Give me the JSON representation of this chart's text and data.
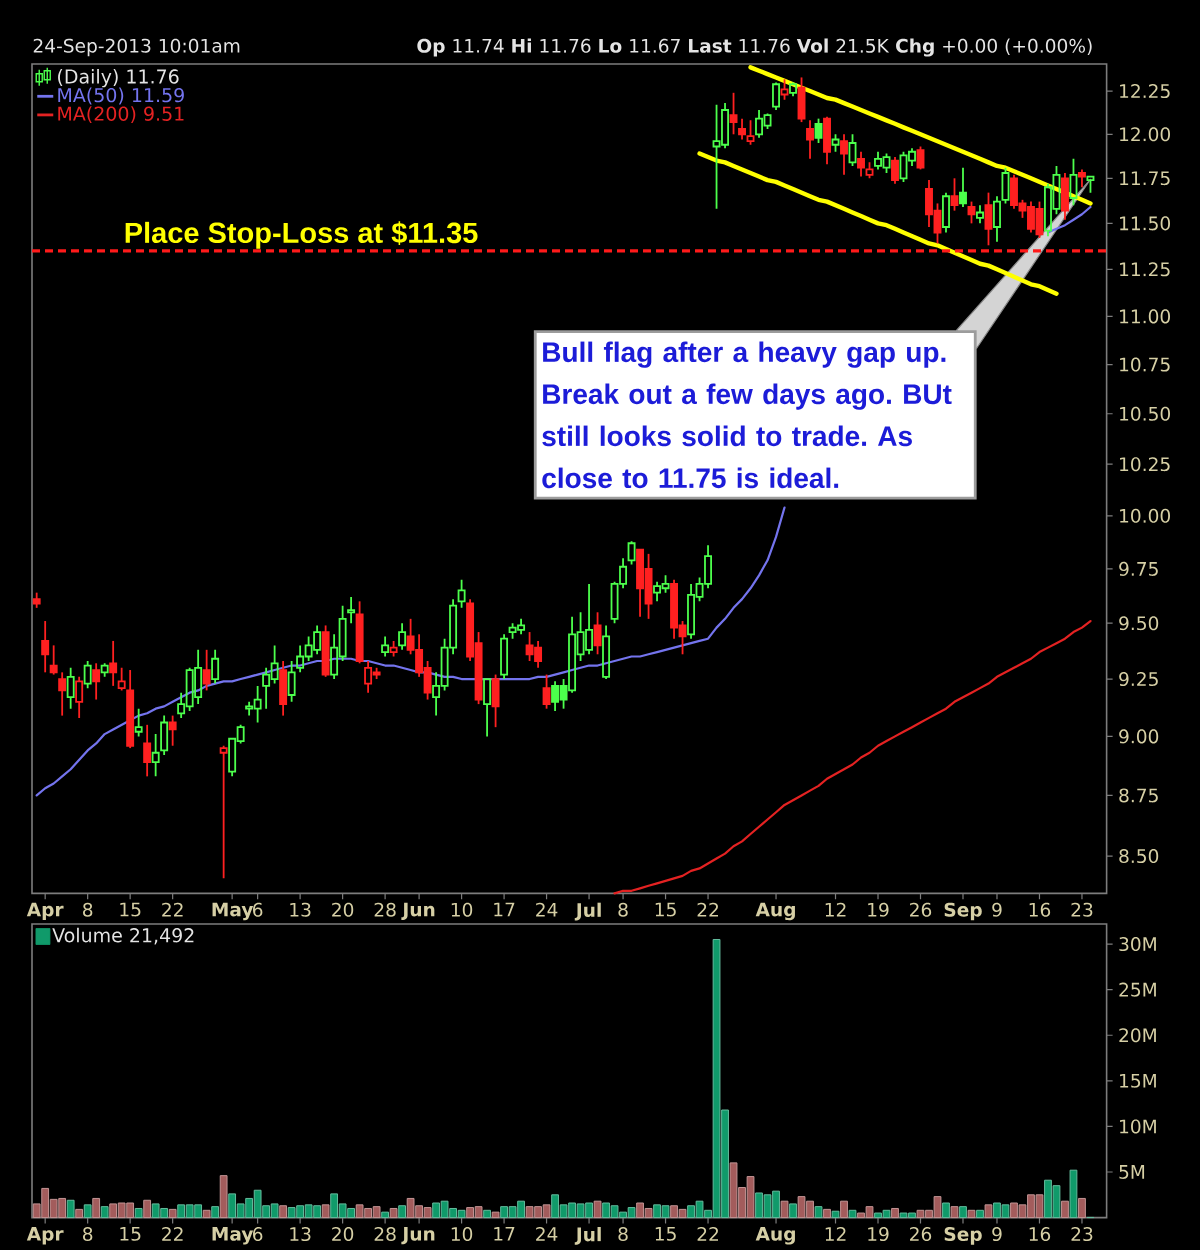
{
  "chart_data": [
    {
      "type": "candlestick",
      "subtitle": "24-Sep-2013 10:01am",
      "annotations": [
        "**Op** 11.74 **Hi** 11.76 **Lo** 11.67 **Last** 11.76 **Vol** 21.5K **Chg** +0.00 (+0.00%)",
        "Bull flag after a heavy gap up. Break out a few days ago. BUt still looks solid to trade. As close to 11.75 is ideal."
      ],
      "categories": [
        null,
        "**Apr**",
        null,
        null,
        null,
        null,
        "8",
        null,
        null,
        null,
        null,
        "15",
        null,
        null,
        null,
        null,
        "22",
        null,
        null,
        null,
        null,
        null,
        null,
        "**May**",
        null,
        null,
        "6",
        null,
        null,
        null,
        null,
        "13",
        null,
        null,
        null,
        null,
        "20",
        null,
        null,
        null,
        null,
        "28",
        null,
        null,
        null,
        "**Jun**",
        null,
        null,
        null,
        null,
        "10",
        null,
        null,
        null,
        null,
        "17",
        null,
        null,
        null,
        null,
        "24",
        null,
        null,
        null,
        null,
        "**Jul**",
        null,
        null,
        null,
        "8",
        null,
        null,
        null,
        null,
        "15",
        null,
        null,
        null,
        null,
        "22",
        null,
        null,
        null,
        null,
        null,
        null,
        null,
        "**Aug**",
        null,
        null,
        null,
        null,
        null,
        null,
        "12",
        null,
        null,
        null,
        null,
        "19",
        null,
        null,
        null,
        null,
        "26",
        null,
        null,
        null,
        null,
        "**Sep**",
        null,
        null,
        null,
        "9",
        null,
        null,
        null,
        null,
        "16",
        null,
        null,
        null,
        null,
        "23",
        null
      ],
      "series": [
        {
          "type": "candlestick",
          "name": "(Daily) 11.76",
          "ohlc": [
            [
              9.61,
              9.64,
              9.57,
              9.59
            ],
            [
              9.42,
              9.51,
              9.28,
              9.36
            ],
            [
              9.31,
              9.4,
              9.27,
              9.28
            ],
            [
              9.25,
              9.28,
              9.09,
              9.2
            ],
            [
              9.17,
              9.3,
              9.12,
              9.26
            ],
            [
              9.15,
              9.26,
              9.08,
              9.24
            ],
            [
              9.23,
              9.33,
              9.21,
              9.31
            ],
            [
              9.29,
              9.32,
              9.16,
              9.24
            ],
            [
              9.28,
              9.32,
              9.26,
              9.31
            ],
            [
              9.32,
              9.42,
              9.22,
              9.28
            ],
            [
              9.21,
              9.3,
              9.2,
              9.24
            ],
            [
              9.2,
              9.29,
              8.95,
              8.96
            ],
            [
              9.02,
              9.12,
              9.0,
              9.04
            ],
            [
              8.97,
              9.05,
              8.83,
              8.89
            ],
            [
              8.89,
              9.01,
              8.83,
              8.93
            ],
            [
              8.94,
              9.09,
              8.92,
              9.06
            ],
            [
              9.06,
              9.09,
              8.96,
              9.03
            ],
            [
              9.1,
              9.19,
              9.08,
              9.14
            ],
            [
              9.13,
              9.3,
              9.11,
              9.29
            ],
            [
              9.17,
              9.38,
              9.14,
              9.3
            ],
            [
              9.29,
              9.38,
              9.2,
              9.23
            ],
            [
              9.25,
              9.38,
              9.23,
              9.34
            ],
            [
              8.93,
              8.96,
              8.41,
              8.95
            ],
            [
              8.85,
              8.99,
              8.83,
              8.99
            ],
            [
              8.98,
              9.05,
              8.97,
              9.04
            ],
            [
              9.12,
              9.15,
              9.09,
              9.13
            ],
            [
              9.12,
              9.22,
              9.06,
              9.16
            ],
            [
              9.22,
              9.3,
              9.12,
              9.27
            ],
            [
              9.25,
              9.4,
              9.23,
              9.32
            ],
            [
              9.29,
              9.33,
              9.09,
              9.14
            ],
            [
              9.18,
              9.33,
              9.15,
              9.28
            ],
            [
              9.3,
              9.4,
              9.28,
              9.35
            ],
            [
              9.35,
              9.44,
              9.33,
              9.4
            ],
            [
              9.38,
              9.49,
              9.36,
              9.46
            ],
            [
              9.46,
              9.49,
              9.26,
              9.27
            ],
            [
              9.27,
              9.45,
              9.25,
              9.39
            ],
            [
              9.35,
              9.58,
              9.33,
              9.52
            ],
            [
              9.55,
              9.62,
              9.5,
              9.56
            ],
            [
              9.54,
              9.6,
              9.32,
              9.33
            ],
            [
              9.23,
              9.33,
              9.19,
              9.3
            ],
            [
              9.28,
              9.3,
              9.25,
              9.27
            ],
            [
              9.37,
              9.44,
              9.35,
              9.4
            ],
            [
              9.37,
              9.42,
              9.35,
              9.39
            ],
            [
              9.4,
              9.5,
              9.38,
              9.46
            ],
            [
              9.44,
              9.52,
              9.36,
              9.38
            ],
            [
              9.38,
              9.45,
              9.26,
              9.28
            ],
            [
              9.3,
              9.33,
              9.16,
              9.19
            ],
            [
              9.17,
              9.28,
              9.09,
              9.22
            ],
            [
              9.22,
              9.43,
              9.2,
              9.39
            ],
            [
              9.39,
              9.61,
              9.36,
              9.58
            ],
            [
              9.6,
              9.7,
              9.57,
              9.65
            ],
            [
              9.59,
              9.61,
              9.33,
              9.35
            ],
            [
              9.41,
              9.46,
              9.14,
              9.16
            ],
            [
              9.14,
              9.25,
              9.0,
              9.25
            ],
            [
              9.25,
              9.27,
              9.04,
              9.13
            ],
            [
              9.27,
              9.45,
              9.25,
              9.43
            ],
            [
              9.46,
              9.5,
              9.43,
              9.48
            ],
            [
              9.47,
              9.52,
              9.45,
              9.49
            ],
            [
              9.4,
              9.46,
              9.33,
              9.36
            ],
            [
              9.39,
              9.42,
              9.3,
              9.33
            ],
            [
              9.21,
              9.27,
              9.12,
              9.14
            ],
            [
              9.22,
              9.24,
              9.11,
              9.15
            ],
            [
              9.22,
              9.25,
              9.12,
              9.16
            ],
            [
              9.2,
              9.53,
              9.19,
              9.45
            ],
            [
              9.36,
              9.55,
              9.33,
              9.46
            ],
            [
              9.38,
              9.68,
              9.36,
              9.47
            ],
            [
              9.49,
              9.55,
              9.36,
              9.4
            ],
            [
              9.26,
              9.49,
              9.25,
              9.44
            ],
            [
              9.52,
              9.69,
              9.5,
              9.68
            ],
            [
              9.68,
              9.8,
              9.66,
              9.76
            ],
            [
              9.79,
              9.88,
              9.77,
              9.87
            ],
            [
              9.84,
              9.84,
              9.53,
              9.66
            ],
            [
              9.75,
              9.82,
              9.52,
              9.59
            ],
            [
              9.64,
              9.69,
              9.6,
              9.67
            ],
            [
              9.66,
              9.72,
              9.64,
              9.68
            ],
            [
              9.68,
              9.7,
              9.43,
              9.48
            ],
            [
              9.49,
              9.51,
              9.36,
              9.44
            ],
            [
              9.45,
              9.68,
              9.43,
              9.63
            ],
            [
              9.62,
              9.71,
              9.6,
              9.68
            ],
            [
              9.68,
              9.86,
              9.66,
              9.81
            ],
            [
              11.93,
              12.17,
              11.58,
              11.96
            ],
            [
              11.94,
              12.18,
              11.92,
              12.14
            ],
            [
              12.11,
              12.24,
              12.0,
              12.07
            ],
            [
              12.03,
              12.09,
              11.97,
              12.0
            ],
            [
              11.96,
              12.08,
              11.94,
              11.99
            ],
            [
              12.0,
              12.14,
              11.98,
              12.09
            ],
            [
              12.05,
              12.12,
              12.03,
              12.11
            ],
            [
              12.16,
              12.3,
              12.14,
              12.29
            ],
            [
              12.23,
              12.32,
              12.2,
              12.26
            ],
            [
              12.24,
              12.3,
              12.22,
              12.29
            ],
            [
              12.27,
              12.33,
              12.07,
              12.09
            ],
            [
              12.03,
              12.08,
              11.86,
              11.97
            ],
            [
              12.06,
              12.09,
              11.95,
              11.98
            ],
            [
              12.09,
              12.1,
              11.83,
              11.9
            ],
            [
              11.94,
              12.0,
              11.9,
              11.97
            ],
            [
              11.96,
              12.0,
              11.77,
              11.89
            ],
            [
              11.84,
              12.0,
              11.82,
              11.95
            ],
            [
              11.86,
              11.9,
              11.76,
              11.81
            ],
            [
              11.77,
              11.84,
              11.75,
              11.8
            ],
            [
              11.82,
              11.9,
              11.8,
              11.86
            ],
            [
              11.81,
              11.89,
              11.78,
              11.87
            ],
            [
              11.85,
              11.87,
              11.72,
              11.74
            ],
            [
              11.75,
              11.9,
              11.73,
              11.88
            ],
            [
              11.85,
              11.92,
              11.82,
              11.9
            ],
            [
              11.91,
              11.93,
              11.8,
              11.81
            ],
            [
              11.69,
              11.74,
              11.48,
              11.55
            ],
            [
              11.57,
              11.61,
              11.39,
              11.45
            ],
            [
              11.48,
              11.67,
              11.45,
              11.65
            ],
            [
              11.65,
              11.75,
              11.57,
              11.6
            ],
            [
              11.67,
              11.81,
              11.59,
              11.61
            ],
            [
              11.59,
              11.62,
              11.5,
              11.55
            ],
            [
              11.53,
              11.6,
              11.5,
              11.56
            ],
            [
              11.6,
              11.67,
              11.38,
              11.47
            ],
            [
              11.48,
              11.65,
              11.4,
              11.62
            ],
            [
              11.63,
              11.81,
              11.61,
              11.78
            ],
            [
              11.75,
              11.77,
              11.58,
              11.6
            ],
            [
              11.61,
              11.63,
              11.53,
              11.57
            ],
            [
              11.59,
              11.62,
              11.45,
              11.47
            ],
            [
              11.58,
              11.62,
              11.42,
              11.44
            ],
            [
              11.46,
              11.72,
              11.43,
              11.7
            ],
            [
              11.58,
              11.82,
              11.55,
              11.77
            ],
            [
              11.75,
              11.78,
              11.52,
              11.57
            ],
            [
              11.64,
              11.86,
              11.6,
              11.77
            ],
            [
              11.78,
              11.8,
              11.7,
              11.76
            ],
            [
              11.74,
              11.76,
              11.67,
              11.76
            ]
          ],
          "colors": [
            "#ff2020",
            "#ff2020",
            "#ff2020",
            "#ff2020",
            "#4cff4c",
            "#ff2020",
            "#4cff4c",
            "#ff2020",
            "#4cff4c",
            "#ff2020",
            "#ff2020",
            "#ff2020",
            "#4cff4c",
            "#ff2020",
            "#4cff4c",
            "#4cff4c",
            "#ff2020",
            "#4cff4c",
            "#4cff4c",
            "#4cff4c",
            "#ff2020",
            "#4cff4c",
            "#ff2020",
            "#4cff4c",
            "#4cff4c",
            "#4cff4c",
            "#4cff4c",
            "#4cff4c",
            "#4cff4c",
            "#ff2020",
            "#4cff4c",
            "#4cff4c",
            "#4cff4c",
            "#4cff4c",
            "#ff2020",
            "#4cff4c",
            "#4cff4c",
            "#4cff4c",
            "#ff2020",
            "#ff2020",
            "#ff2020",
            "#4cff4c",
            "#ff2020",
            "#4cff4c",
            "#ff2020",
            "#ff2020",
            "#ff2020",
            "#4cff4c",
            "#4cff4c",
            "#4cff4c",
            "#4cff4c",
            "#ff2020",
            "#ff2020",
            "#4cff4c",
            "#ff2020",
            "#4cff4c",
            "#4cff4c",
            "#4cff4c",
            "#ff2020",
            "#ff2020",
            "#ff2020",
            "#4cff4c",
            "#4cff4c",
            "#4cff4c",
            "#4cff4c",
            "#4cff4c",
            "#ff2020",
            "#4cff4c",
            "#4cff4c",
            "#4cff4c",
            "#4cff4c",
            "#ff2020",
            "#ff2020",
            "#4cff4c",
            "#4cff4c",
            "#ff2020",
            "#ff2020",
            "#4cff4c",
            "#4cff4c",
            "#4cff4c",
            "#4cff4c",
            "#4cff4c",
            "#ff2020",
            "#ff2020",
            "#ff2020",
            "#4cff4c",
            "#4cff4c",
            "#4cff4c",
            "#ff2020",
            "#4cff4c",
            "#ff2020",
            "#ff2020",
            "#4cff4c",
            "#ff2020",
            "#4cff4c",
            "#ff2020",
            "#4cff4c",
            "#ff2020",
            "#ff2020",
            "#4cff4c",
            "#4cff4c",
            "#ff2020",
            "#4cff4c",
            "#4cff4c",
            "#ff2020",
            "#ff2020",
            "#ff2020",
            "#4cff4c",
            "#ff2020",
            "#4cff4c",
            "#ff2020",
            "#4cff4c",
            "#ff2020",
            "#4cff4c",
            "#4cff4c",
            "#ff2020",
            "#ff2020",
            "#ff2020",
            "#ff2020",
            "#4cff4c",
            "#4cff4c",
            "#ff2020",
            "#4cff4c",
            "#ff2020",
            "#4cff4c"
          ]
        },
        {
          "type": "line",
          "name": "MA(50) 11.59",
          "color": "#7474ee",
          "values": [
            8.75,
            8.78,
            8.8,
            8.83,
            8.86,
            8.9,
            8.94,
            8.97,
            9.01,
            9.03,
            9.05,
            9.07,
            9.09,
            9.1,
            9.12,
            9.13,
            9.15,
            9.17,
            9.19,
            9.2,
            9.22,
            9.23,
            9.24,
            9.24,
            9.25,
            9.26,
            9.27,
            9.28,
            9.29,
            9.3,
            9.31,
            9.31,
            9.32,
            9.33,
            9.33,
            9.34,
            9.34,
            9.34,
            9.33,
            9.33,
            9.32,
            9.31,
            9.31,
            9.3,
            9.29,
            9.28,
            9.28,
            9.27,
            9.26,
            9.26,
            9.25,
            9.25,
            9.25,
            9.25,
            9.25,
            9.25,
            9.25,
            9.25,
            9.25,
            9.26,
            9.26,
            9.27,
            9.28,
            9.29,
            9.3,
            9.31,
            9.31,
            9.32,
            9.33,
            9.34,
            9.35,
            9.35,
            9.36,
            9.37,
            9.38,
            9.39,
            9.4,
            9.41,
            9.42,
            9.43,
            9.48,
            9.52,
            9.57,
            9.61,
            9.66,
            9.72,
            9.79,
            9.9,
            10.04,
            null,
            null,
            null,
            null,
            null,
            null,
            null,
            null,
            null,
            null,
            null,
            null,
            null,
            null,
            null,
            null,
            null,
            null,
            null,
            null,
            null,
            null,
            null,
            null,
            null,
            null,
            null,
            null,
            null,
            null,
            11.45,
            11.47,
            11.49,
            11.52,
            11.55,
            11.59
          ]
        },
        {
          "type": "line",
          "name": "MA(200) 9.51",
          "color": "#e42222",
          "values": [
            null,
            null,
            null,
            null,
            null,
            null,
            null,
            null,
            null,
            null,
            null,
            null,
            null,
            null,
            null,
            null,
            null,
            null,
            null,
            null,
            null,
            null,
            null,
            null,
            null,
            null,
            null,
            null,
            null,
            null,
            null,
            null,
            null,
            null,
            null,
            null,
            null,
            null,
            null,
            null,
            null,
            null,
            null,
            null,
            null,
            null,
            null,
            null,
            null,
            null,
            null,
            null,
            null,
            null,
            null,
            null,
            null,
            null,
            null,
            null,
            null,
            null,
            null,
            null,
            null,
            null,
            null,
            null,
            8.35,
            8.36,
            8.36,
            8.37,
            8.38,
            8.39,
            8.4,
            8.41,
            8.42,
            8.44,
            8.45,
            8.47,
            8.49,
            8.51,
            8.54,
            8.56,
            8.59,
            8.62,
            8.65,
            8.68,
            8.71,
            8.73,
            8.75,
            8.77,
            8.79,
            8.82,
            8.84,
            8.86,
            8.88,
            8.91,
            8.93,
            8.96,
            8.98,
            9.0,
            9.02,
            9.04,
            9.06,
            9.08,
            9.1,
            9.12,
            9.15,
            9.17,
            9.19,
            9.21,
            9.23,
            9.26,
            9.28,
            9.3,
            9.32,
            9.34,
            9.37,
            9.39,
            9.41,
            9.43,
            9.46,
            9.48,
            9.51
          ]
        },
        {
          "type": "line",
          "color": "#ffff00",
          "values": [
            null,
            null,
            null,
            null,
            null,
            null,
            null,
            null,
            null,
            null,
            null,
            null,
            null,
            null,
            null,
            null,
            null,
            null,
            null,
            null,
            null,
            null,
            null,
            null,
            null,
            null,
            null,
            null,
            null,
            null,
            null,
            null,
            null,
            null,
            null,
            null,
            null,
            null,
            null,
            null,
            null,
            null,
            null,
            null,
            null,
            null,
            null,
            null,
            null,
            null,
            null,
            null,
            null,
            null,
            null,
            null,
            null,
            null,
            null,
            null,
            null,
            null,
            null,
            null,
            null,
            null,
            null,
            null,
            null,
            null,
            null,
            null,
            null,
            null,
            null,
            null,
            null,
            null,
            null,
            null,
            null,
            null,
            null,
            null,
            12.39,
            12.37,
            12.35,
            12.33,
            12.31,
            12.29,
            12.27,
            12.25,
            12.23,
            12.21,
            12.2,
            12.18,
            12.16,
            12.14,
            12.12,
            12.1,
            12.08,
            12.06,
            12.04,
            12.02,
            12.0,
            11.98,
            11.96,
            11.94,
            11.92,
            11.9,
            11.88,
            11.86,
            11.84,
            11.82,
            11.81,
            11.79,
            11.77,
            11.75,
            11.73,
            11.71,
            11.69,
            11.67,
            11.65,
            11.63,
            11.61
          ]
        },
        {
          "type": "line",
          "color": "#ffff00",
          "values": [
            null,
            null,
            null,
            null,
            null,
            null,
            null,
            null,
            null,
            null,
            null,
            null,
            null,
            null,
            null,
            null,
            null,
            null,
            null,
            null,
            null,
            null,
            null,
            null,
            null,
            null,
            null,
            null,
            null,
            null,
            null,
            null,
            null,
            null,
            null,
            null,
            null,
            null,
            null,
            null,
            null,
            null,
            null,
            null,
            null,
            null,
            null,
            null,
            null,
            null,
            null,
            null,
            null,
            null,
            null,
            null,
            null,
            null,
            null,
            null,
            null,
            null,
            null,
            null,
            null,
            null,
            null,
            null,
            null,
            null,
            null,
            null,
            null,
            null,
            null,
            null,
            null,
            null,
            11.89,
            11.87,
            11.85,
            11.84,
            11.82,
            11.8,
            11.78,
            11.76,
            11.74,
            11.73,
            11.71,
            11.69,
            11.67,
            11.65,
            11.63,
            11.62,
            11.6,
            11.58,
            11.56,
            11.54,
            11.52,
            11.5,
            11.49,
            11.47,
            11.45,
            11.43,
            11.41,
            11.39,
            11.38,
            11.36,
            11.34,
            11.32,
            11.3,
            11.28,
            11.27,
            11.25,
            11.23,
            11.21,
            11.19,
            11.17,
            11.16,
            11.14,
            11.12,
            null,
            null,
            null,
            null
          ]
        }
      ],
      "ref_lines": [
        {
          "axis": "y",
          "value": 11.35,
          "label": "Place Stop-Loss at $11.35",
          "color": "#ff1a1a",
          "line_style": "dashed"
        }
      ],
      "log": true,
      "ylim": [
        8.35,
        12.41
      ],
      "yticks": [
        {
          "value": 8.5,
          "label": "8.50"
        },
        8.75,
        {
          "value": 9,
          "label": "9.00"
        },
        9.25,
        {
          "value": 9.5,
          "label": "9.50"
        },
        9.75,
        {
          "value": 10,
          "label": "10.00"
        },
        10.25,
        {
          "value": 10.5,
          "label": "10.50"
        },
        10.75,
        {
          "value": 11,
          "label": "11.00"
        },
        11.25,
        {
          "value": 11.5,
          "label": "11.50"
        },
        11.75,
        {
          "value": 12,
          "label": "12.00"
        },
        12.25
      ],
      "legend": "top left"
    },
    {
      "type": "bar",
      "categories": [
        null,
        "**Apr**",
        null,
        null,
        null,
        null,
        "8",
        null,
        null,
        null,
        null,
        "15",
        null,
        null,
        null,
        null,
        "22",
        null,
        null,
        null,
        null,
        null,
        null,
        "**May**",
        null,
        null,
        "6",
        null,
        null,
        null,
        null,
        "13",
        null,
        null,
        null,
        null,
        "20",
        null,
        null,
        null,
        null,
        "28",
        null,
        null,
        null,
        "**Jun**",
        null,
        null,
        null,
        null,
        "10",
        null,
        null,
        null,
        null,
        "17",
        null,
        null,
        null,
        null,
        "24",
        null,
        null,
        null,
        null,
        "**Jul**",
        null,
        null,
        null,
        "8",
        null,
        null,
        null,
        null,
        "15",
        null,
        null,
        null,
        null,
        "22",
        null,
        null,
        null,
        null,
        null,
        null,
        null,
        "**Aug**",
        null,
        null,
        null,
        null,
        null,
        null,
        "12",
        null,
        null,
        null,
        null,
        "19",
        null,
        null,
        null,
        null,
        "26",
        null,
        null,
        null,
        null,
        "**Sep**",
        null,
        null,
        null,
        "9",
        null,
        null,
        null,
        null,
        "16",
        null,
        null,
        null,
        null,
        "23",
        null
      ],
      "series": [
        {
          "name": "Volume 21,492",
          "values": [
            1.5,
            3.2,
            2.0,
            2.1,
            1.9,
            0.9,
            1.4,
            2.1,
            1.2,
            1.5,
            1.6,
            1.6,
            1.0,
            1.9,
            1.5,
            1.0,
            0.9,
            1.4,
            1.4,
            1.4,
            0.8,
            1.2,
            4.6,
            2.6,
            1.5,
            2.1,
            3.0,
            1.3,
            1.5,
            1.3,
            1.1,
            1.3,
            1.4,
            1.3,
            1.4,
            2.6,
            1.5,
            1.0,
            1.4,
            1.0,
            1.2,
            0.6,
            1.0,
            1.3,
            2.1,
            1.3,
            1.1,
            1.6,
            1.8,
            1.0,
            0.8,
            1.1,
            1.2,
            0.8,
            0.6,
            1.2,
            1.2,
            1.8,
            1.2,
            1.2,
            1.4,
            2.5,
            1.4,
            1.6,
            1.5,
            1.6,
            1.8,
            1.6,
            1.3,
            0.6,
            1.1,
            1.6,
            1.0,
            1.4,
            1.3,
            1.3,
            0.9,
            1.3,
            1.8,
            0.8,
            30.5,
            11.8,
            6.0,
            3.3,
            4.5,
            2.7,
            2.5,
            2.9,
            1.8,
            1.5,
            2.3,
            1.8,
            1.2,
            0.9,
            0.7,
            1.8,
            0.8,
            0.5,
            1.2,
            0.5,
            0.8,
            1.0,
            0.5,
            0.5,
            0.8,
            0.8,
            2.3,
            1.6,
            1.2,
            1.2,
            0.8,
            0.8,
            1.4,
            1.6,
            1.4,
            1.6,
            1.4,
            2.5,
            2.5,
            4.1,
            3.5,
            1.8,
            5.2,
            2.1,
            0.02
          ],
          "colors": [
            "#a35c5c",
            "#a35c5c",
            "#a35c5c",
            "#a35c5c",
            "#109a6a",
            "#a35c5c",
            "#109a6a",
            "#a35c5c",
            "#109a6a",
            "#a35c5c",
            "#a35c5c",
            "#a35c5c",
            "#109a6a",
            "#a35c5c",
            "#109a6a",
            "#109a6a",
            "#a35c5c",
            "#109a6a",
            "#109a6a",
            "#109a6a",
            "#a35c5c",
            "#109a6a",
            "#a35c5c",
            "#109a6a",
            "#109a6a",
            "#109a6a",
            "#109a6a",
            "#109a6a",
            "#109a6a",
            "#a35c5c",
            "#109a6a",
            "#109a6a",
            "#109a6a",
            "#109a6a",
            "#a35c5c",
            "#109a6a",
            "#109a6a",
            "#109a6a",
            "#a35c5c",
            "#a35c5c",
            "#a35c5c",
            "#109a6a",
            "#a35c5c",
            "#109a6a",
            "#a35c5c",
            "#a35c5c",
            "#a35c5c",
            "#109a6a",
            "#109a6a",
            "#109a6a",
            "#109a6a",
            "#a35c5c",
            "#a35c5c",
            "#109a6a",
            "#a35c5c",
            "#109a6a",
            "#109a6a",
            "#109a6a",
            "#a35c5c",
            "#a35c5c",
            "#a35c5c",
            "#109a6a",
            "#109a6a",
            "#109a6a",
            "#109a6a",
            "#109a6a",
            "#a35c5c",
            "#109a6a",
            "#109a6a",
            "#109a6a",
            "#109a6a",
            "#a35c5c",
            "#a35c5c",
            "#109a6a",
            "#109a6a",
            "#a35c5c",
            "#a35c5c",
            "#109a6a",
            "#109a6a",
            "#109a6a",
            "#109a6a",
            "#109a6a",
            "#a35c5c",
            "#a35c5c",
            "#a35c5c",
            "#109a6a",
            "#109a6a",
            "#109a6a",
            "#a35c5c",
            "#109a6a",
            "#a35c5c",
            "#a35c5c",
            "#109a6a",
            "#a35c5c",
            "#109a6a",
            "#a35c5c",
            "#109a6a",
            "#a35c5c",
            "#a35c5c",
            "#109a6a",
            "#109a6a",
            "#a35c5c",
            "#109a6a",
            "#109a6a",
            "#a35c5c",
            "#a35c5c",
            "#a35c5c",
            "#109a6a",
            "#a35c5c",
            "#109a6a",
            "#a35c5c",
            "#109a6a",
            "#a35c5c",
            "#109a6a",
            "#109a6a",
            "#a35c5c",
            "#a35c5c",
            "#a35c5c",
            "#a35c5c",
            "#109a6a",
            "#109a6a",
            "#a35c5c",
            "#109a6a",
            "#a35c5c",
            "#109a6a"
          ]
        }
      ],
      "ylim": [
        0,
        32.2
      ],
      "yticks": [
        {
          "value": 5,
          "label": "5M"
        },
        {
          "value": 10,
          "label": "10M"
        },
        {
          "value": 15,
          "label": "15M"
        },
        {
          "value": 20,
          "label": "20M"
        },
        {
          "value": 25,
          "label": "25M"
        },
        {
          "value": 30,
          "label": "30M"
        }
      ],
      "legend": "top left"
    }
  ]
}
